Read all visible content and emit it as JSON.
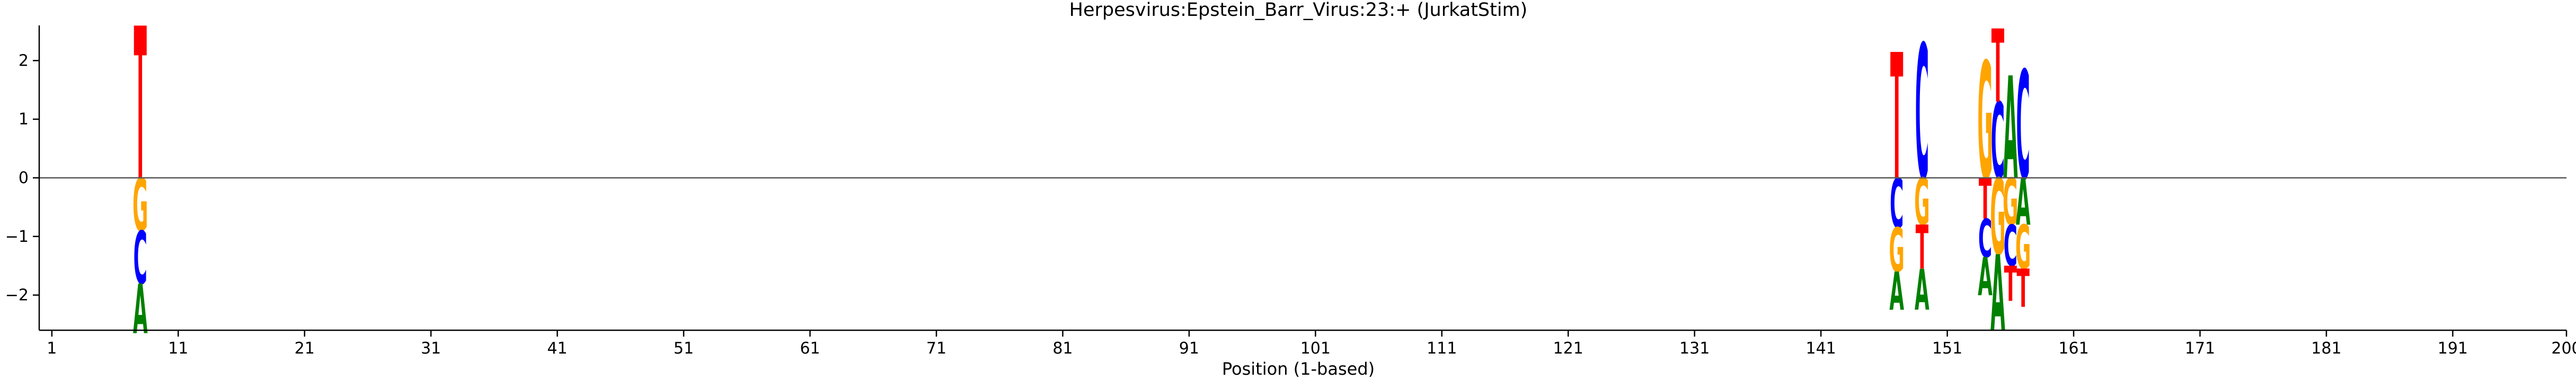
{
  "chart_data": {
    "type": "sequence-logo",
    "title": "Herpesvirus:Epstein_Barr_Virus:23:+  (JurkatStim)",
    "xlabel": "Position (1-based)",
    "ylabel": "",
    "xlim": [
      0,
      200
    ],
    "ylim": [
      -2.6,
      2.6
    ],
    "x_ticks": [
      1,
      11,
      21,
      31,
      41,
      51,
      61,
      71,
      81,
      91,
      101,
      111,
      121,
      131,
      141,
      151,
      161,
      171,
      181,
      191,
      200
    ],
    "x_tick_labels": [
      "1",
      "11",
      "21",
      "31",
      "41",
      "51",
      "61",
      "71",
      "81",
      "91",
      "101",
      "111",
      "121",
      "131",
      "141",
      "151",
      "161",
      "171",
      "181",
      "191",
      "200"
    ],
    "y_ticks": [
      -2,
      -1,
      0,
      1,
      2
    ],
    "y_tick_labels": [
      "−2",
      "−1",
      "0",
      "1",
      "2"
    ],
    "baseline_y": 0,
    "grid": false,
    "colors": {
      "A": "#008000",
      "C": "#0000ff",
      "G": "#ffa500",
      "T": "#ff0000"
    },
    "positions": [
      {
        "x": 8,
        "letters": [
          {
            "base": "T",
            "value": 2.6
          },
          {
            "base": "G",
            "value": -0.9
          },
          {
            "base": "C",
            "value": -0.9
          },
          {
            "base": "A",
            "value": -0.85
          }
        ]
      },
      {
        "x": 147,
        "letters": [
          {
            "base": "T",
            "value": 2.15
          },
          {
            "base": "G",
            "value": -0.75
          },
          {
            "base": "C",
            "value": -0.85
          },
          {
            "base": "A",
            "value": -0.65
          }
        ]
      },
      {
        "x": 149,
        "letters": [
          {
            "base": "C",
            "value": 2.3
          },
          {
            "base": "T",
            "value": -0.75
          },
          {
            "base": "G",
            "value": -0.8
          },
          {
            "base": "A",
            "value": -0.7
          }
        ]
      },
      {
        "x": 154,
        "letters": [
          {
            "base": "G",
            "value": 2.0
          },
          {
            "base": "T",
            "value": -0.7
          },
          {
            "base": "C",
            "value": -0.65
          },
          {
            "base": "A",
            "value": -0.65
          }
        ]
      },
      {
        "x": 155,
        "letters": [
          {
            "base": "C",
            "value": 1.3
          },
          {
            "base": "T",
            "value": 1.25
          },
          {
            "base": "G",
            "value": -1.3
          },
          {
            "base": "A",
            "value": -1.3
          }
        ]
      },
      {
        "x": 156,
        "letters": [
          {
            "base": "A",
            "value": 1.75
          },
          {
            "base": "T",
            "value": -0.6
          },
          {
            "base": "G",
            "value": -0.8
          },
          {
            "base": "C",
            "value": -0.7
          }
        ]
      },
      {
        "x": 157,
        "letters": [
          {
            "base": "C",
            "value": 1.85
          },
          {
            "base": "T",
            "value": -0.65
          },
          {
            "base": "G",
            "value": -0.75
          },
          {
            "base": "A",
            "value": -0.8
          }
        ]
      }
    ]
  }
}
